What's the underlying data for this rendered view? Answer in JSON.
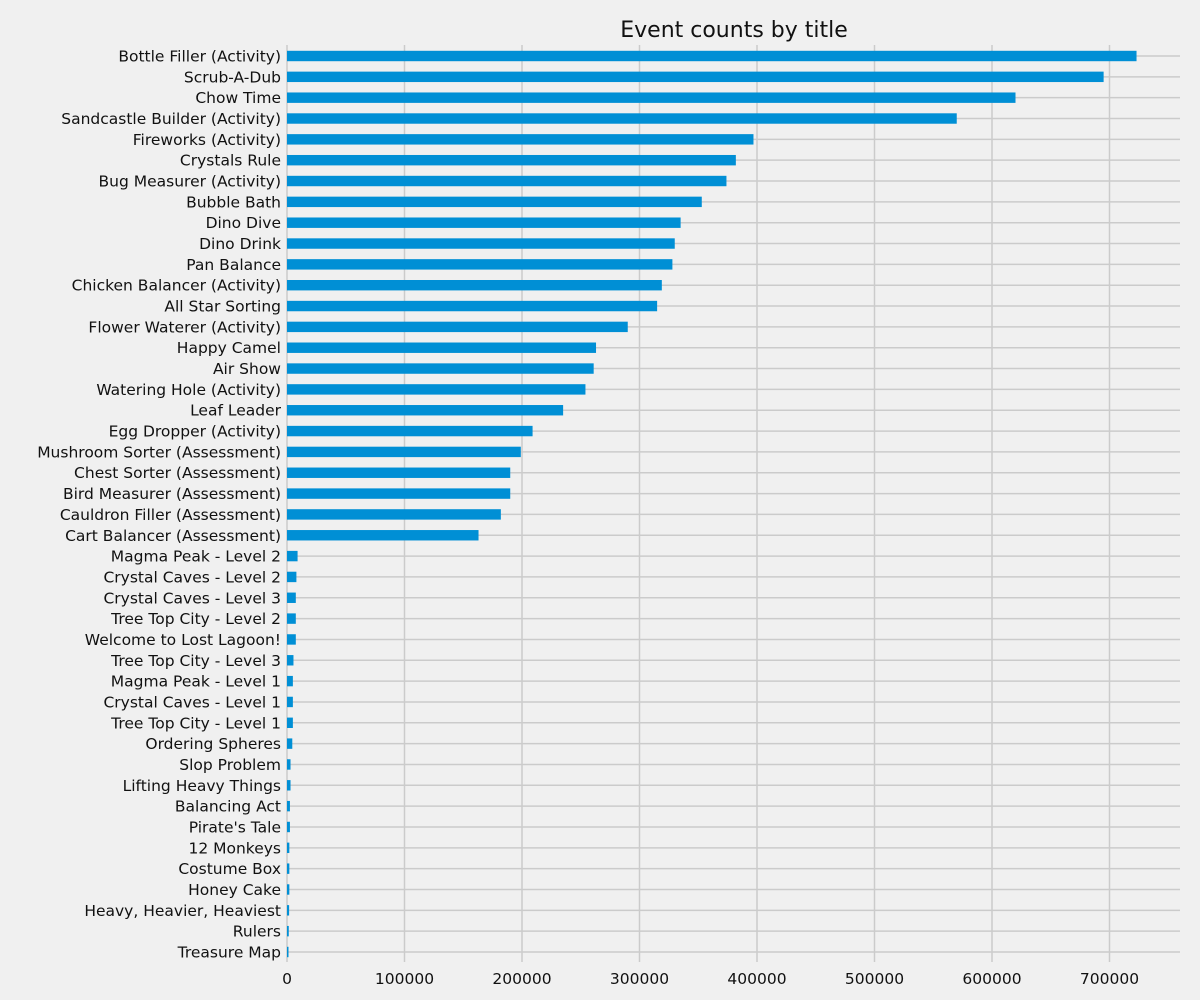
{
  "chart_data": {
    "type": "bar",
    "orientation": "horizontal",
    "title": "Event counts by title",
    "xlabel": "",
    "ylabel": "",
    "xlim": [
      0,
      760000
    ],
    "xticks": [
      0,
      100000,
      200000,
      300000,
      400000,
      500000,
      600000,
      700000
    ],
    "xtick_labels": [
      "0",
      "100000",
      "200000",
      "300000",
      "400000",
      "500000",
      "600000",
      "700000"
    ],
    "grid": true,
    "legend": "none",
    "bar_color": "#008fd5",
    "categories": [
      "Bottle Filler (Activity)",
      "Scrub-A-Dub",
      "Chow Time",
      "Sandcastle Builder (Activity)",
      "Fireworks (Activity)",
      "Crystals Rule",
      "Bug Measurer (Activity)",
      "Bubble Bath",
      "Dino Dive",
      "Dino Drink",
      "Pan Balance",
      "Chicken Balancer (Activity)",
      "All Star Sorting",
      "Flower Waterer (Activity)",
      "Happy Camel",
      "Air Show",
      "Watering Hole (Activity)",
      "Leaf Leader",
      "Egg Dropper (Activity)",
      "Mushroom Sorter (Assessment)",
      "Chest Sorter (Assessment)",
      "Bird Measurer (Assessment)",
      "Cauldron Filler (Assessment)",
      "Cart Balancer (Assessment)",
      "Magma Peak - Level 2",
      "Crystal Caves - Level 2",
      "Crystal Caves - Level 3",
      "Tree Top City - Level 2",
      "Welcome to Lost Lagoon!",
      "Tree Top City - Level 3",
      "Magma Peak - Level 1",
      "Crystal Caves - Level 1",
      "Tree Top City - Level 1",
      "Ordering Spheres",
      "Slop Problem",
      "Lifting Heavy Things",
      "Balancing Act",
      "Pirate's Tale",
      "12 Monkeys",
      "Costume Box",
      "Honey Cake",
      "Heavy, Heavier, Heaviest",
      "Rulers",
      "Treasure Map"
    ],
    "values": [
      723000,
      695000,
      620000,
      570000,
      397000,
      382000,
      374000,
      353000,
      335000,
      330000,
      328000,
      319000,
      315000,
      290000,
      263000,
      261000,
      254000,
      235000,
      209000,
      199000,
      190000,
      190000,
      182000,
      163000,
      9000,
      8000,
      7500,
      7500,
      7500,
      5500,
      5000,
      5000,
      5000,
      4500,
      3000,
      3000,
      2500,
      2500,
      2000,
      2000,
      2000,
      1800,
      1500,
      1200
    ]
  }
}
